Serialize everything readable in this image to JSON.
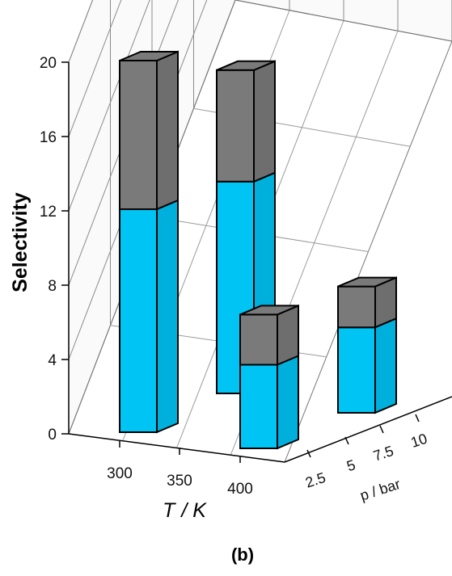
{
  "chart_data": {
    "type": "bar",
    "subtype": "3d-stacked-bar",
    "caption": "(b)",
    "ylabel": "Selectivity",
    "xlabel_symbol": "T",
    "xlabel_unit": "/ K",
    "zlabel": "p / bar",
    "ylim": [
      0,
      20
    ],
    "y_ticks": [
      "0",
      "4",
      "8",
      "12",
      "16",
      "20"
    ],
    "x_ticks": [
      "300",
      "350",
      "400"
    ],
    "z_ticks": [
      "2.5",
      "5",
      "7.5",
      "10"
    ],
    "grid": true,
    "series": [
      {
        "name": "",
        "color": "#00c4f4"
      },
      {
        "name": "",
        "color": "#7a7a7a"
      }
    ],
    "points": [
      {
        "T": "300",
        "p": "2.5",
        "lower": 12.0,
        "total": 20.0
      },
      {
        "T": "350",
        "p": "5",
        "lower": 11.4,
        "total": 17.4
      },
      {
        "T": "400",
        "p": "2.5",
        "lower": 4.5,
        "total": 7.2
      },
      {
        "T": "400",
        "p": "10",
        "lower": 4.6,
        "total": 6.8
      }
    ]
  }
}
